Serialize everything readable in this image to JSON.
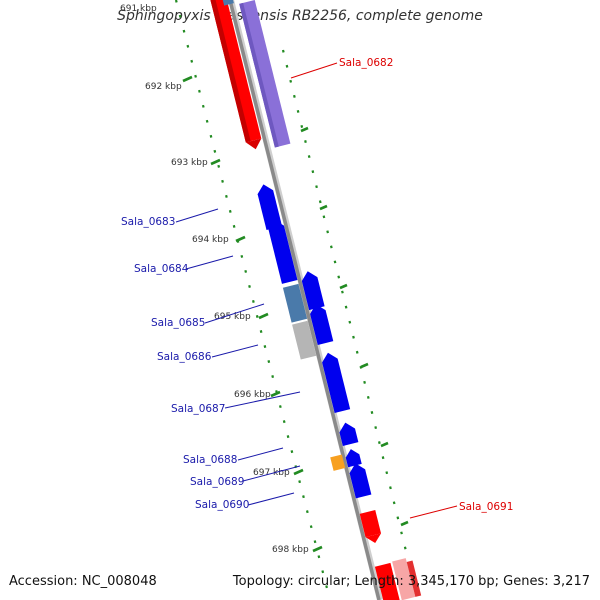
{
  "title": "Sphingopyxis alaskensis RB2256, complete genome",
  "accession": "Accession: NC_008048",
  "summary": "Topology: circular; Length: 3,345,170 bp; Genes: 3,217",
  "colors": {
    "axis": "#888888",
    "tick": "#228b22",
    "reverse_strand": "#ff0000",
    "forward_strand": "#0000ee",
    "label_reverse": "#dd0000",
    "label_forward": "#1a1aaa",
    "pseudo_grey": "#b5b5b5",
    "steel": "#4a7aaa",
    "orange": "#f7a020",
    "purple": "#8a70d8",
    "pink": "#f7a6a6"
  },
  "kbp_labels": [
    "691 kbp",
    "692 kbp",
    "693 kbp",
    "694 kbp",
    "695 kbp",
    "696 kbp",
    "697 kbp",
    "698 kbp"
  ],
  "gene_labels": [
    "Sala_0682",
    "Sala_0683",
    "Sala_0684",
    "Sala_0685",
    "Sala_0686",
    "Sala_0687",
    "Sala_0688",
    "Sala_0689",
    "Sala_0690",
    "Sala_0691"
  ]
}
